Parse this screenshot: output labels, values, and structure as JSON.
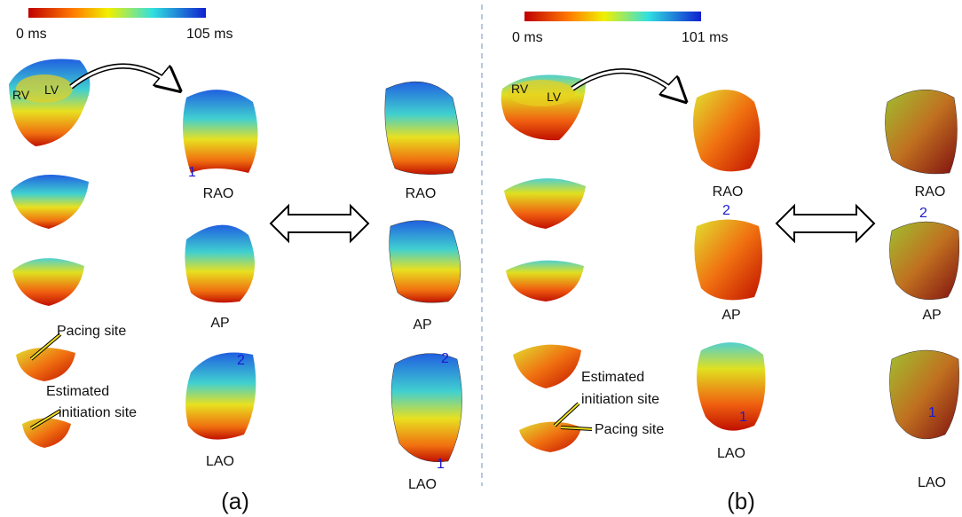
{
  "panels": [
    {
      "colorbar": {
        "min": "0 ms",
        "max": "105 ms"
      },
      "chamber_labels": [
        "RV",
        "LV"
      ],
      "views": [
        "RAO",
        "AP",
        "LAO"
      ],
      "site_labels": {
        "pacing": "Pacing site",
        "estimated": [
          "Estimated",
          "initiation site"
        ]
      },
      "markers": [
        "1",
        "2",
        "2",
        "1"
      ],
      "caption": "(a)"
    },
    {
      "colorbar": {
        "min": "0 ms",
        "max": "101 ms"
      },
      "chamber_labels": [
        "RV",
        "LV"
      ],
      "views": [
        "RAO",
        "AP",
        "LAO"
      ],
      "site_labels": {
        "pacing": "Pacing site",
        "estimated": [
          "Estimated",
          "initiation site"
        ]
      },
      "markers": [
        "2",
        "2",
        "1",
        "1"
      ],
      "caption": "(b)"
    }
  ]
}
